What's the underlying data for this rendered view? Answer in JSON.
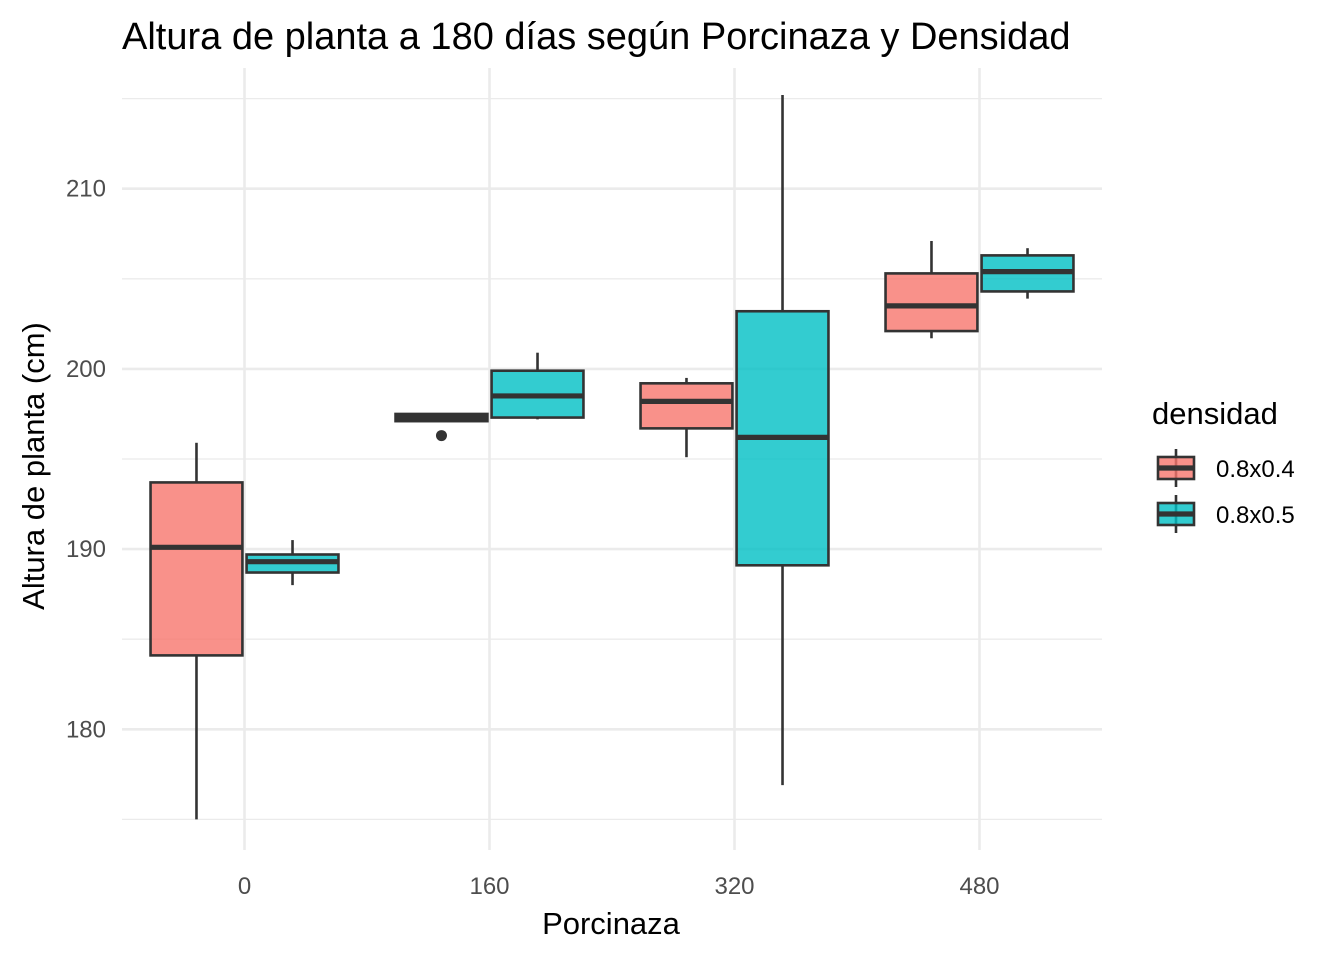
{
  "chart_data": {
    "type": "box",
    "title": "Altura de planta a 180 días según Porcinaza y Densidad",
    "xlabel": "Porcinaza",
    "ylabel": "Altura de planta (cm)",
    "categories": [
      "0",
      "160",
      "320",
      "480"
    ],
    "y_ticks": [
      "180",
      "190",
      "200",
      "210"
    ],
    "ylim": [
      173.3,
      216.7
    ],
    "grid": true,
    "legend": {
      "title": "densidad",
      "position": "right"
    },
    "series": [
      {
        "name": "0.8x0.4",
        "color": "#F8766D",
        "boxes": [
          {
            "category": "0",
            "min": 175.0,
            "q1": 184.1,
            "median": 190.1,
            "q3": 193.7,
            "max": 195.9,
            "outliers": []
          },
          {
            "category": "160",
            "min": 197.1,
            "q1": 197.1,
            "median": 197.3,
            "q3": 197.5,
            "max": 197.5,
            "outliers": [
              196.3
            ]
          },
          {
            "category": "320",
            "min": 195.1,
            "q1": 196.7,
            "median": 198.2,
            "q3": 199.2,
            "max": 199.5,
            "outliers": []
          },
          {
            "category": "480",
            "min": 201.7,
            "q1": 202.1,
            "median": 203.5,
            "q3": 205.3,
            "max": 207.1,
            "outliers": []
          }
        ]
      },
      {
        "name": "0.8x0.5",
        "color": "#00BFC4",
        "boxes": [
          {
            "category": "0",
            "min": 188.0,
            "q1": 188.7,
            "median": 189.3,
            "q3": 189.7,
            "max": 190.5,
            "outliers": []
          },
          {
            "category": "160",
            "min": 197.2,
            "q1": 197.3,
            "median": 198.5,
            "q3": 199.9,
            "max": 200.9,
            "outliers": []
          },
          {
            "category": "320",
            "min": 176.9,
            "q1": 189.1,
            "median": 196.2,
            "q3": 203.2,
            "max": 215.2,
            "outliers": []
          },
          {
            "category": "480",
            "min": 203.9,
            "q1": 204.3,
            "median": 205.4,
            "q3": 206.3,
            "max": 206.7,
            "outliers": []
          }
        ]
      }
    ]
  }
}
